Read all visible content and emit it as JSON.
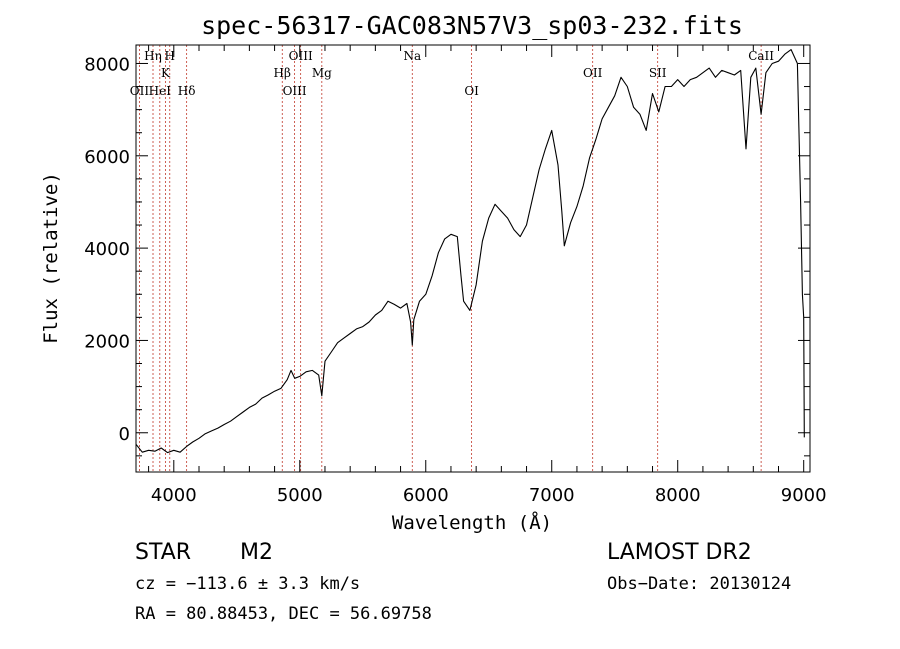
{
  "chart_data": {
    "type": "line",
    "title": "spec-56317-GAC083N57V3_sp03-232.fits",
    "xlabel": "Wavelength (Å)",
    "ylabel": "Flux (relative)",
    "xlim": [
      3700,
      9050
    ],
    "ylim": [
      -850,
      8400
    ],
    "xticks": [
      {
        "value": 4000,
        "label": "4000"
      },
      {
        "value": 5000,
        "label": "5000"
      },
      {
        "value": 6000,
        "label": "6000"
      },
      {
        "value": 7000,
        "label": "7000"
      },
      {
        "value": 8000,
        "label": "8000"
      },
      {
        "value": 9000,
        "label": "9000"
      }
    ],
    "yticks": [
      {
        "value": 0,
        "label": "0"
      },
      {
        "value": 2000,
        "label": "2000"
      },
      {
        "value": 4000,
        "label": "4000"
      },
      {
        "value": 6000,
        "label": "6000"
      },
      {
        "value": 8000,
        "label": "8000"
      }
    ],
    "spectral_lines": [
      {
        "name": "OII",
        "wavelength": 3727,
        "row": 2
      },
      {
        "name": "Hη",
        "wavelength": 3835,
        "row": 0
      },
      {
        "name": "HeI",
        "wavelength": 3889,
        "row": 2
      },
      {
        "name": "K",
        "wavelength": 3934,
        "row": 1
      },
      {
        "name": "H",
        "wavelength": 3968,
        "row": 0
      },
      {
        "name": "Hδ",
        "wavelength": 4102,
        "row": 2
      },
      {
        "name": "Hβ",
        "wavelength": 4861,
        "row": 1
      },
      {
        "name": "OIII",
        "wavelength": 4959,
        "row": 2
      },
      {
        "name": "OIII",
        "wavelength": 5007,
        "row": 0
      },
      {
        "name": "Mg",
        "wavelength": 5175,
        "row": 1
      },
      {
        "name": "Na",
        "wavelength": 5893,
        "row": 0
      },
      {
        "name": "OI",
        "wavelength": 6364,
        "row": 2
      },
      {
        "name": "OII",
        "wavelength": 7325,
        "row": 1
      },
      {
        "name": "SII",
        "wavelength": 7841,
        "row": 1
      },
      {
        "name": "CaII",
        "wavelength": 8662,
        "row": 0
      }
    ],
    "series": [
      {
        "color": "#000000",
        "points": [
          [
            3700,
            -250
          ],
          [
            3750,
            -420
          ],
          [
            3800,
            -380
          ],
          [
            3850,
            -400
          ],
          [
            3900,
            -330
          ],
          [
            3950,
            -430
          ],
          [
            4000,
            -380
          ],
          [
            4050,
            -420
          ],
          [
            4100,
            -300
          ],
          [
            4150,
            -200
          ],
          [
            4200,
            -120
          ],
          [
            4250,
            -20
          ],
          [
            4300,
            40
          ],
          [
            4350,
            100
          ],
          [
            4400,
            180
          ],
          [
            4450,
            250
          ],
          [
            4500,
            350
          ],
          [
            4550,
            450
          ],
          [
            4600,
            550
          ],
          [
            4650,
            620
          ],
          [
            4700,
            750
          ],
          [
            4750,
            820
          ],
          [
            4800,
            900
          ],
          [
            4850,
            960
          ],
          [
            4900,
            1150
          ],
          [
            4930,
            1350
          ],
          [
            4960,
            1180
          ],
          [
            5000,
            1220
          ],
          [
            5050,
            1320
          ],
          [
            5100,
            1350
          ],
          [
            5150,
            1250
          ],
          [
            5175,
            800
          ],
          [
            5200,
            1550
          ],
          [
            5250,
            1750
          ],
          [
            5300,
            1950
          ],
          [
            5350,
            2050
          ],
          [
            5400,
            2150
          ],
          [
            5450,
            2250
          ],
          [
            5500,
            2300
          ],
          [
            5550,
            2400
          ],
          [
            5600,
            2550
          ],
          [
            5650,
            2650
          ],
          [
            5700,
            2850
          ],
          [
            5750,
            2780
          ],
          [
            5800,
            2700
          ],
          [
            5850,
            2800
          ],
          [
            5880,
            2400
          ],
          [
            5893,
            1900
          ],
          [
            5905,
            2450
          ],
          [
            5950,
            2850
          ],
          [
            6000,
            3000
          ],
          [
            6050,
            3400
          ],
          [
            6100,
            3900
          ],
          [
            6150,
            4200
          ],
          [
            6200,
            4300
          ],
          [
            6250,
            4250
          ],
          [
            6280,
            3400
          ],
          [
            6300,
            2850
          ],
          [
            6350,
            2650
          ],
          [
            6400,
            3200
          ],
          [
            6450,
            4150
          ],
          [
            6500,
            4650
          ],
          [
            6550,
            4950
          ],
          [
            6600,
            4800
          ],
          [
            6650,
            4650
          ],
          [
            6700,
            4400
          ],
          [
            6750,
            4250
          ],
          [
            6800,
            4500
          ],
          [
            6850,
            5100
          ],
          [
            6900,
            5700
          ],
          [
            6950,
            6150
          ],
          [
            7000,
            6550
          ],
          [
            7050,
            5800
          ],
          [
            7080,
            4800
          ],
          [
            7100,
            4050
          ],
          [
            7150,
            4550
          ],
          [
            7200,
            4900
          ],
          [
            7250,
            5350
          ],
          [
            7300,
            5950
          ],
          [
            7350,
            6350
          ],
          [
            7400,
            6800
          ],
          [
            7450,
            7050
          ],
          [
            7500,
            7300
          ],
          [
            7550,
            7700
          ],
          [
            7600,
            7500
          ],
          [
            7650,
            7050
          ],
          [
            7700,
            6900
          ],
          [
            7750,
            6550
          ],
          [
            7800,
            7350
          ],
          [
            7850,
            6950
          ],
          [
            7900,
            7500
          ],
          [
            7950,
            7500
          ],
          [
            8000,
            7650
          ],
          [
            8050,
            7500
          ],
          [
            8100,
            7650
          ],
          [
            8150,
            7700
          ],
          [
            8200,
            7800
          ],
          [
            8250,
            7900
          ],
          [
            8300,
            7700
          ],
          [
            8350,
            7850
          ],
          [
            8400,
            7800
          ],
          [
            8450,
            7750
          ],
          [
            8500,
            7850
          ],
          [
            8542,
            6150
          ],
          [
            8580,
            7700
          ],
          [
            8620,
            7900
          ],
          [
            8662,
            6900
          ],
          [
            8700,
            7800
          ],
          [
            8750,
            8000
          ],
          [
            8800,
            8050
          ],
          [
            8850,
            8200
          ],
          [
            8900,
            8300
          ],
          [
            8950,
            8000
          ],
          [
            8975,
            5000
          ],
          [
            8990,
            3000
          ],
          [
            9000,
            2500
          ],
          [
            9005,
            -100
          ]
        ]
      }
    ]
  },
  "info": {
    "object_class": "STAR",
    "subclass": "M2",
    "survey": "LAMOST DR2",
    "redshift": "cz = −113.6 ± 3.3 km/s",
    "obs_date": "Obs−Date: 20130124",
    "coords": "RA =  80.88453, DEC =  56.69758"
  }
}
